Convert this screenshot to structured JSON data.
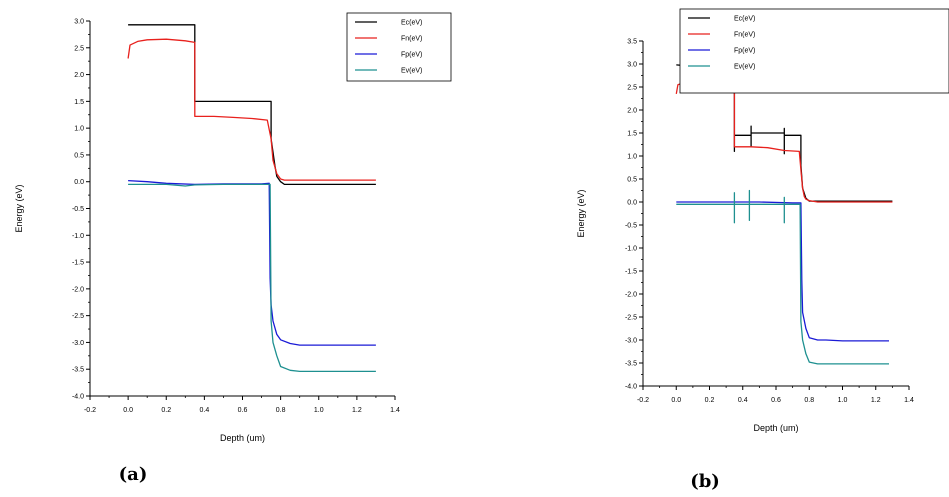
{
  "colors": {
    "Ec": "#000000",
    "Fn": "#e8211d",
    "Fp": "#1a1ad6",
    "Ev": "#1e9090"
  },
  "chart_data": [
    {
      "type": "line",
      "panel_label": "(a)",
      "xlabel": "Depth (um)",
      "ylabel": "Energy (eV)",
      "xlim": [
        -0.2,
        1.4
      ],
      "ylim": [
        -4.0,
        3.0
      ],
      "x_ticks": [
        -0.2,
        0.0,
        0.2,
        0.4,
        0.6,
        0.8,
        1.0,
        1.2,
        1.4
      ],
      "x_tick_labels": [
        "-0.2",
        "0.0",
        "0.2",
        "0.4",
        "0.6",
        "0.8",
        "1.0",
        "1.2",
        "1.4"
      ],
      "y_ticks": [
        3.0,
        2.5,
        2.0,
        1.5,
        1.0,
        0.5,
        0.0,
        -0.5,
        -1.0,
        -1.5,
        -2.0,
        -2.5,
        -3.0,
        -3.5,
        -4.0
      ],
      "y_tick_labels": [
        "3.0",
        "2.5",
        "2.0",
        "1.5",
        "1.0",
        "0.5",
        "0.0",
        "-0.5",
        "-1.0",
        "-1.5",
        "-2.0",
        "-2.5",
        "-3.0",
        "-3.5",
        "-4.0"
      ],
      "legend_position": "top-right",
      "series": [
        {
          "name": "Ec(eV)",
          "color_key": "Ec",
          "x": [
            0.0,
            0.35,
            0.35,
            0.35,
            0.75,
            0.75,
            0.77,
            0.78,
            0.8,
            0.82,
            1.3
          ],
          "y": [
            2.93,
            2.93,
            2.5,
            1.5,
            1.5,
            0.8,
            0.3,
            0.1,
            0.0,
            -0.05,
            -0.05
          ]
        },
        {
          "name": "Fn(eV)",
          "color_key": "Fn",
          "x": [
            0.0,
            0.01,
            0.05,
            0.1,
            0.2,
            0.3,
            0.35,
            0.35,
            0.45,
            0.55,
            0.65,
            0.73,
            0.75,
            0.76,
            0.78,
            0.8,
            0.82,
            1.3
          ],
          "y": [
            2.3,
            2.55,
            2.62,
            2.65,
            2.66,
            2.63,
            2.6,
            1.22,
            1.22,
            1.2,
            1.18,
            1.15,
            0.8,
            0.4,
            0.15,
            0.05,
            0.03,
            0.03
          ]
        },
        {
          "name": "Fp(eV)",
          "color_key": "Fp",
          "x": [
            0.0,
            0.1,
            0.2,
            0.35,
            0.5,
            0.7,
            0.74,
            0.745,
            0.75,
            0.76,
            0.78,
            0.8,
            0.85,
            0.9,
            1.0,
            1.3
          ],
          "y": [
            0.02,
            0.0,
            -0.03,
            -0.05,
            -0.04,
            -0.04,
            -0.03,
            -1.8,
            -2.3,
            -2.6,
            -2.85,
            -2.95,
            -3.02,
            -3.05,
            -3.05,
            -3.05
          ]
        },
        {
          "name": "Ev(eV)",
          "color_key": "Ev",
          "x": [
            0.0,
            0.2,
            0.3,
            0.35,
            0.5,
            0.7,
            0.745,
            0.75,
            0.76,
            0.78,
            0.8,
            0.85,
            0.9,
            1.0,
            1.3
          ],
          "y": [
            -0.05,
            -0.05,
            -0.08,
            -0.06,
            -0.05,
            -0.05,
            -0.05,
            -2.6,
            -3.0,
            -3.25,
            -3.45,
            -3.52,
            -3.54,
            -3.54,
            -3.54
          ]
        }
      ]
    },
    {
      "type": "line",
      "panel_label": "(b)",
      "xlabel": "Depth (um)",
      "ylabel": "Energy (eV)",
      "xlim": [
        -0.2,
        1.4
      ],
      "ylim": [
        -4.0,
        3.5
      ],
      "x_ticks": [
        -0.2,
        0.0,
        0.2,
        0.4,
        0.6,
        0.8,
        1.0,
        1.2,
        1.4
      ],
      "x_tick_labels": [
        "-0.2",
        "0.0",
        "0.2",
        "0.4",
        "0.6",
        "0.8",
        "1.0",
        "1.2",
        "1.4"
      ],
      "y_ticks": [
        3.5,
        3.0,
        2.5,
        2.0,
        1.5,
        1.0,
        0.5,
        0.0,
        -0.5,
        -1.0,
        -1.5,
        -2.0,
        -2.5,
        -3.0,
        -3.5,
        -4.0
      ],
      "y_tick_labels": [
        "3.5",
        "3.0",
        "2.5",
        "2.0",
        "1.5",
        "1.0",
        "0.5",
        "0.0",
        "-0.5",
        "-1.0",
        "-1.5",
        "-2.0",
        "-2.5",
        "-3.0",
        "-3.5",
        "-4.0"
      ],
      "legend_position": "top-right",
      "series": [
        {
          "name": "Ec(eV)",
          "color_key": "Ec",
          "x": [
            0.0,
            0.1,
            0.35,
            0.35,
            0.35,
            0.35,
            0.45,
            0.45,
            0.45,
            0.45,
            0.65,
            0.65,
            0.65,
            0.65,
            0.75,
            0.75,
            0.76,
            0.78,
            0.8,
            1.3
          ],
          "y": [
            2.98,
            2.95,
            2.95,
            3.1,
            1.1,
            1.45,
            1.45,
            1.65,
            1.2,
            1.5,
            1.5,
            1.6,
            1.05,
            1.45,
            1.45,
            0.8,
            0.3,
            0.08,
            0.02,
            0.02
          ]
        },
        {
          "name": "Fn(eV)",
          "color_key": "Fn",
          "x": [
            0.0,
            0.01,
            0.05,
            0.1,
            0.2,
            0.35,
            0.35,
            0.45,
            0.55,
            0.65,
            0.74,
            0.75,
            0.76,
            0.77,
            0.78,
            0.8,
            0.85,
            1.3
          ],
          "y": [
            2.35,
            2.55,
            2.6,
            2.62,
            2.66,
            2.63,
            1.2,
            1.2,
            1.18,
            1.12,
            1.1,
            0.7,
            0.3,
            0.12,
            0.06,
            0.03,
            0.0,
            0.0
          ]
        },
        {
          "name": "Fp(eV)",
          "color_key": "Fp",
          "x": [
            0.0,
            0.2,
            0.35,
            0.5,
            0.7,
            0.75,
            0.755,
            0.76,
            0.78,
            0.8,
            0.85,
            0.9,
            1.0,
            1.28
          ],
          "y": [
            0.0,
            0.0,
            0.0,
            0.0,
            -0.02,
            -0.02,
            -1.7,
            -2.4,
            -2.75,
            -2.95,
            -3.0,
            -3.0,
            -3.02,
            -3.02
          ]
        },
        {
          "name": "Ev(eV)",
          "color_key": "Ev",
          "x": [
            0.0,
            0.2,
            0.35,
            0.35,
            0.35,
            0.35,
            0.44,
            0.44,
            0.44,
            0.44,
            0.65,
            0.65,
            0.65,
            0.65,
            0.745,
            0.75,
            0.76,
            0.78,
            0.8,
            0.85,
            1.0,
            1.28
          ],
          "y": [
            -0.05,
            -0.05,
            -0.05,
            -0.45,
            0.2,
            -0.05,
            -0.05,
            -0.4,
            0.25,
            -0.05,
            -0.05,
            -0.45,
            0.1,
            -0.05,
            -0.05,
            -2.6,
            -3.0,
            -3.3,
            -3.48,
            -3.52,
            -3.52,
            -3.52
          ]
        }
      ]
    }
  ]
}
